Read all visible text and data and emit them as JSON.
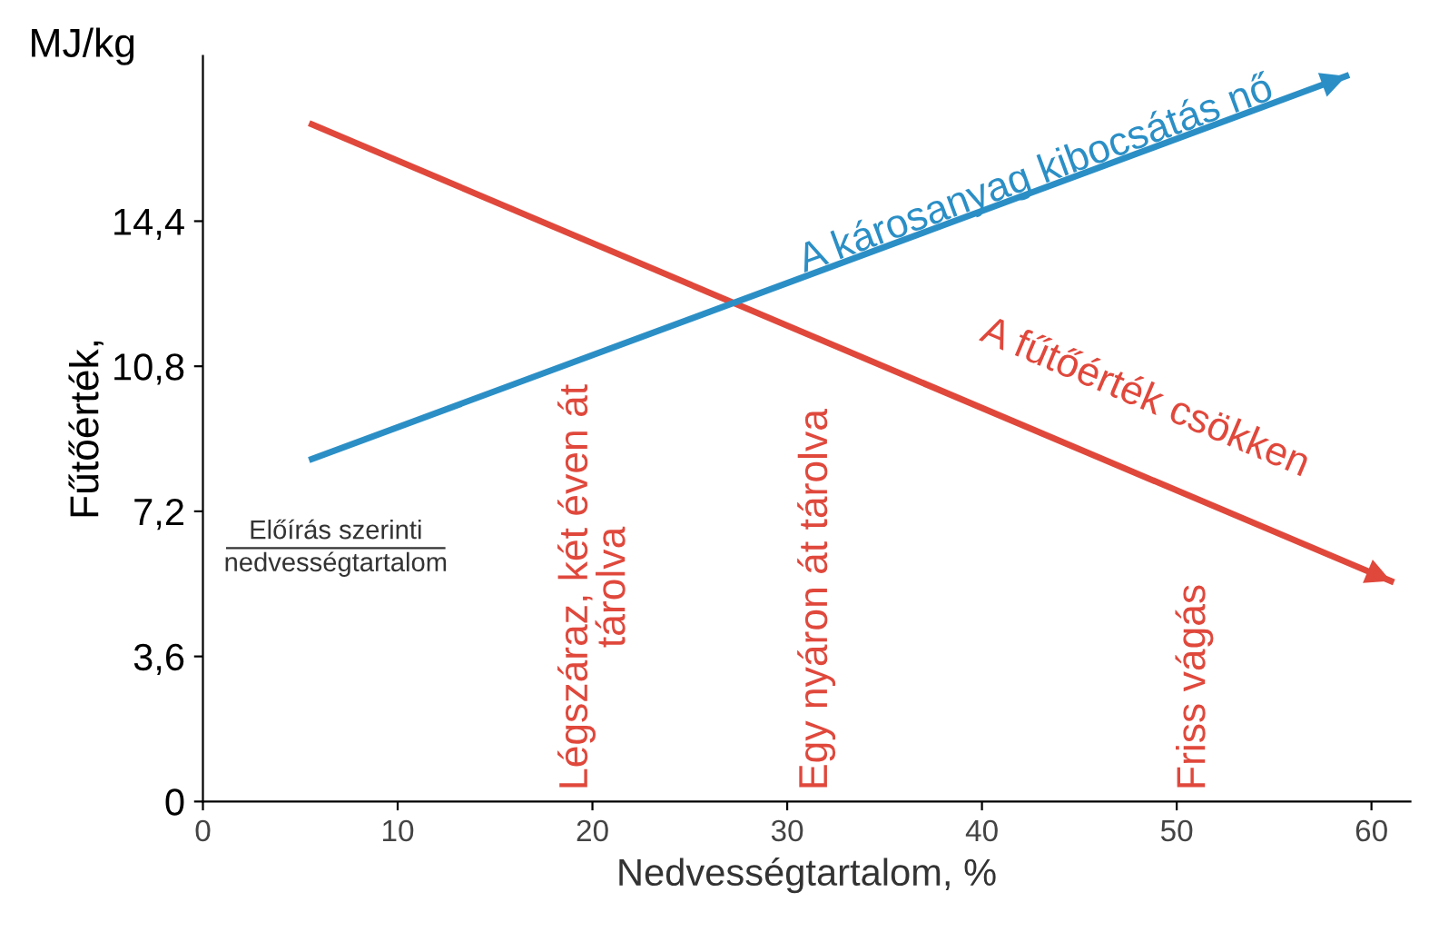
{
  "chart_data": {
    "type": "line",
    "xlabel": "Nedvességtartalom, %",
    "ylabel": "Fűtőérték,",
    "series": [
      {
        "color": "#e0483c",
        "x": [
          5.6,
          61
        ],
        "values": [
          16.8,
          5.47
        ]
      },
      {
        "color": "#2b8fc6",
        "x": [
          5.6,
          58.7
        ],
        "values": [
          8.5,
          18.0
        ]
      }
    ],
    "xlim": [
      0,
      62
    ],
    "ylim": [
      0,
      18.5
    ],
    "xticks": [
      0,
      10,
      20,
      30,
      40,
      50,
      60
    ],
    "yticks": [
      0,
      {
        "value": 3.6,
        "label": "3,6"
      },
      {
        "value": 7.2,
        "label": "7,2"
      },
      {
        "value": 10.8,
        "label": "10,8"
      },
      {
        "value": 14.4,
        "label": "14,4"
      }
    ],
    "grid": false,
    "marker": "none",
    "line_style": "solid",
    "annotations": [
      "MJ/kg",
      "Előírás szerinti\nnedvességtartalom",
      "A károsanyag kibocsátás nő",
      "A fűtőérték csökken",
      "Légszáraz, két éven át tárolva",
      "Egy nyáron át tárolva",
      "Friss vágás"
    ]
  }
}
